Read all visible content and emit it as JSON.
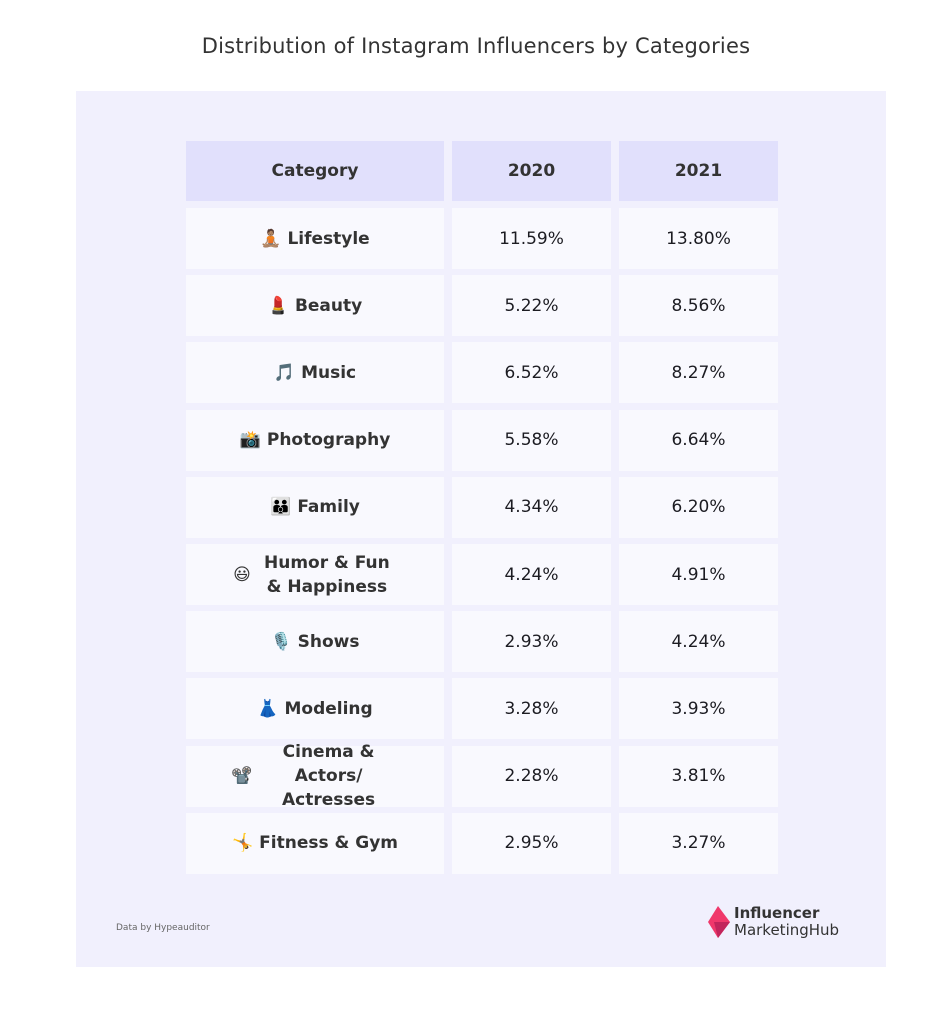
{
  "title": "Distribution of Instagram Influencers by Categories",
  "chart_data": {
    "type": "table",
    "columns": [
      "Category",
      "2020",
      "2021"
    ],
    "rows": [
      {
        "emoji": "🧘🏽",
        "category": "Lifestyle",
        "y2020": "11.59%",
        "y2021": "13.80%"
      },
      {
        "emoji": "💄",
        "category": "Beauty",
        "y2020": "5.22%",
        "y2021": "8.56%"
      },
      {
        "emoji": "🎵",
        "category": "Music",
        "y2020": "6.52%",
        "y2021": "8.27%"
      },
      {
        "emoji": "📸",
        "category": "Photography",
        "y2020": "5.58%",
        "y2021": "6.64%"
      },
      {
        "emoji": "👪",
        "category": "Family",
        "y2020": "4.34%",
        "y2021": "6.20%"
      },
      {
        "emoji": "😃",
        "category": "Humor & Fun & Happiness",
        "y2020": "4.24%",
        "y2021": "4.91%"
      },
      {
        "emoji": "🎙️",
        "category": "Shows",
        "y2020": "2.93%",
        "y2021": "4.24%"
      },
      {
        "emoji": "👗",
        "category": "Modeling",
        "y2020": "3.28%",
        "y2021": "3.93%"
      },
      {
        "emoji": "📽️",
        "category": "Cinema & Actors/ Actresses",
        "y2020": "2.28%",
        "y2021": "3.81%"
      },
      {
        "emoji": "🤸",
        "category": "Fitness & Gym",
        "y2020": "2.95%",
        "y2021": "3.27%"
      }
    ]
  },
  "source": "Data by Hypeauditor",
  "logo": {
    "line1": "Influencer",
    "line2": "MarketingHub"
  },
  "colors": {
    "panel": "#f1f0fd",
    "header": "#e1e0fc",
    "cell": "#f9f9fe",
    "logo_pink": "#f0386b",
    "logo_dark": "#c2255c"
  }
}
